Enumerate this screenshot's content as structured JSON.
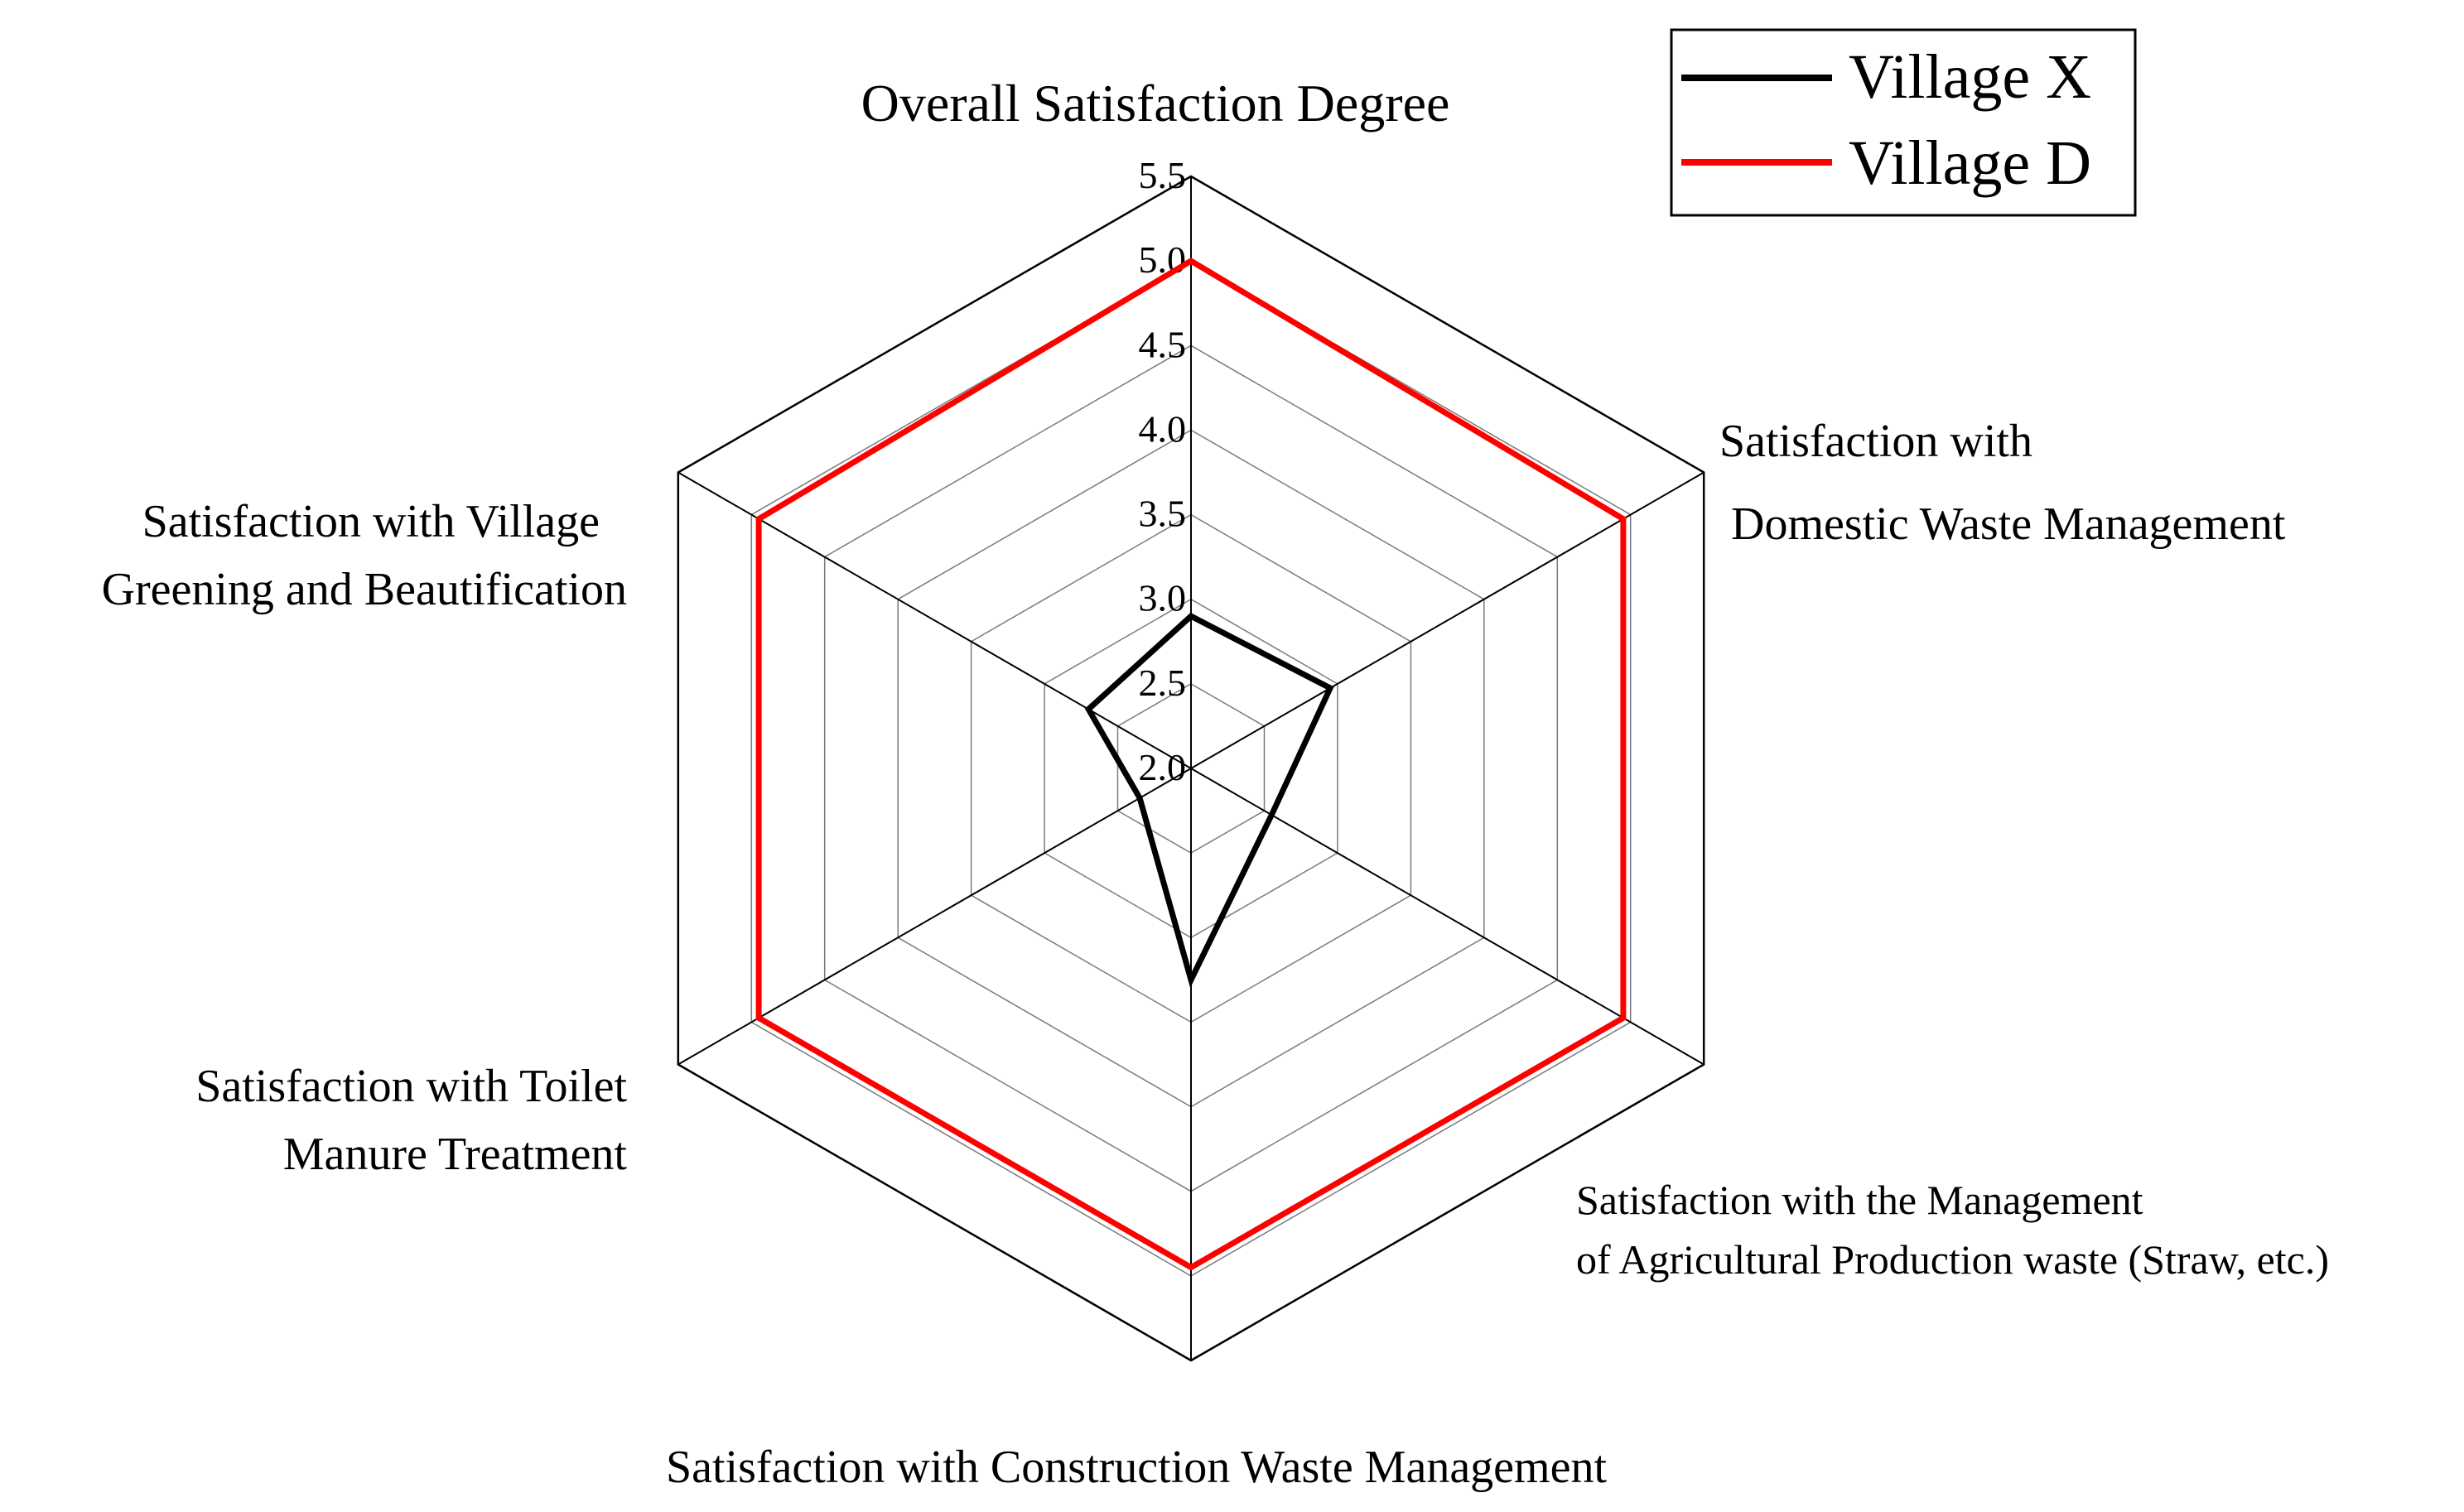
{
  "chart_data": {
    "type": "radar",
    "title": "",
    "axes": [
      {
        "key": "overall",
        "label_lines": [
          "Overall Satisfaction Degree"
        ]
      },
      {
        "key": "domestic",
        "label_lines": [
          "Satisfaction with",
          "Domestic Waste Management"
        ]
      },
      {
        "key": "agricultural",
        "label_lines": [
          "Satisfaction with the Management",
          "of Agricultural Production waste (Straw, etc.)"
        ]
      },
      {
        "key": "construction",
        "label_lines": [
          "Satisfaction with Construction Waste Management"
        ]
      },
      {
        "key": "toilet",
        "label_lines": [
          "Satisfaction with Toilet",
          "Manure Treatment"
        ]
      },
      {
        "key": "greening",
        "label_lines": [
          "Satisfaction with Village",
          "Greening and Beautification"
        ]
      }
    ],
    "r_min": 2.0,
    "r_max": 5.5,
    "ticks": [
      2.0,
      2.5,
      3.0,
      3.5,
      4.0,
      4.5,
      5.0,
      5.5
    ],
    "tick_labels": [
      "2.0",
      "2.5",
      "3.0",
      "3.5",
      "4.0",
      "4.5",
      "5.0",
      "5.5"
    ],
    "series": [
      {
        "name": "Village X",
        "color": "#000000",
        "values": [
          2.9,
          2.95,
          2.55,
          3.25,
          2.35,
          2.7
        ]
      },
      {
        "name": "Village D",
        "color": "#ff0000",
        "values": [
          5.0,
          4.95,
          4.95,
          4.95,
          4.95,
          4.95
        ]
      }
    ],
    "legend": {
      "position": "top-right",
      "entries": [
        "Village X",
        "Village D"
      ]
    }
  }
}
